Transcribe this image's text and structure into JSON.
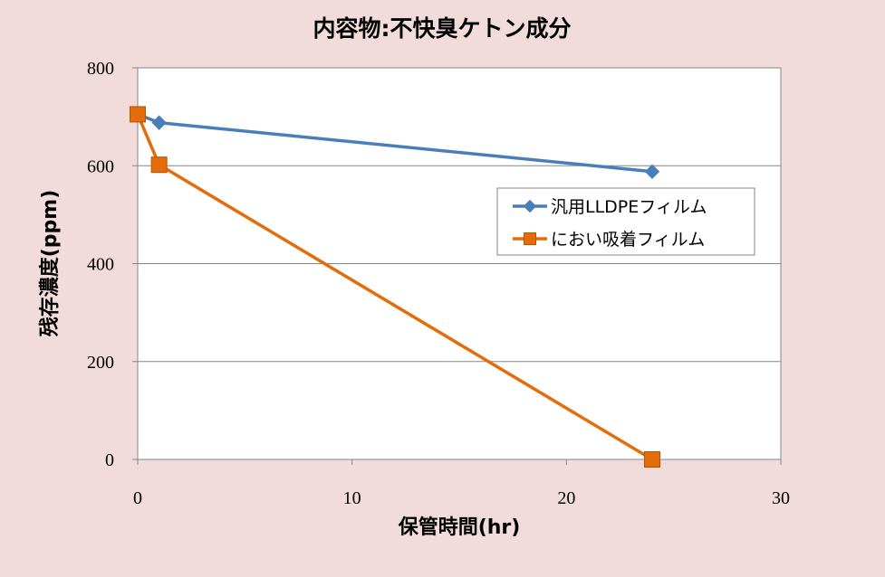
{
  "chart_data": {
    "type": "line",
    "title": "内容物:不快臭ケトン成分",
    "xlabel": "保管時間(hr)",
    "ylabel": "残存濃度(ppm)",
    "xlim": [
      0,
      30
    ],
    "ylim": [
      0,
      800
    ],
    "xticks": [
      0,
      10,
      20,
      30
    ],
    "yticks": [
      0,
      200,
      400,
      600,
      800
    ],
    "grid": "horizontal",
    "legend_position": "right",
    "series": [
      {
        "name": "汎用LLDPEフィルム",
        "color": "#4a7ebb",
        "marker": "diamond",
        "x": [
          0,
          1,
          24
        ],
        "y": [
          705,
          688,
          588
        ]
      },
      {
        "name": "におい吸着フィルム",
        "color": "#e46c0a",
        "marker": "square",
        "x": [
          0,
          1,
          24
        ],
        "y": [
          705,
          602,
          0
        ]
      }
    ]
  }
}
